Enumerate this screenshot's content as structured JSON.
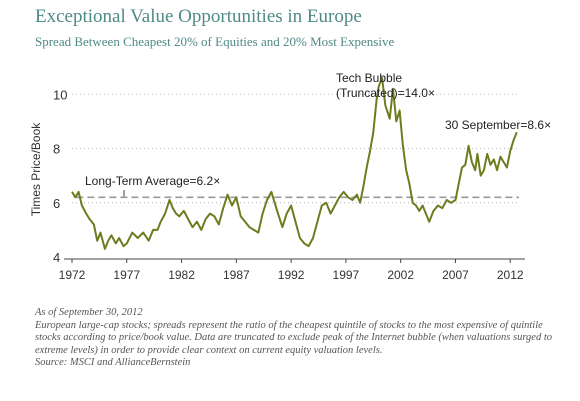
{
  "title": "Exceptional Value Opportunities in Europe",
  "subtitle": "Spread Between Cheapest 20% of Equities and 20% Most Expensive",
  "notes": [
    "As of September 30, 2012",
    "European large-cap stocks; spreads represent the ratio of the cheapest quintile of stocks to the most expensive of quintile stocks according to price/book value. Data are truncated to exclude peak of the Internet bubble (when valuations surged to extreme levels) in order to provide clear context on current equity valuation levels.",
    "Source: MSCI and AllianceBernstein"
  ],
  "chart_data": {
    "type": "line",
    "title": "Exceptional Value Opportunities in Europe",
    "subtitle": "Spread Between Cheapest 20% of Equities and 20% Most Expensive",
    "xlabel": "",
    "ylabel": "Times Price/Book",
    "xlim": [
      1972,
      2012.8
    ],
    "ylim": [
      4,
      10.6
    ],
    "x_ticks": [
      "1972",
      "1977",
      "1982",
      "1987",
      "1992",
      "1997",
      "2002",
      "2007",
      "2012"
    ],
    "y_ticks": [
      "4",
      "6",
      "8",
      "10"
    ],
    "grid": "horizontal dotted",
    "line_color": "#6b7d1e",
    "reference_line": {
      "value": 6.2,
      "label": "Long-Term Average=6.2×",
      "style": "dashed"
    },
    "annotations": [
      {
        "text_lines": [
          "Tech Bubble",
          "(Truncated)=14.0×"
        ],
        "x": 2000.3,
        "y": 14.0
      },
      {
        "text": "30 September=8.6×",
        "x": 2012.6,
        "y": 8.6
      }
    ],
    "series": [
      {
        "x": [
          1972.0,
          1972.3,
          1972.6,
          1972.9,
          1973.3,
          1973.6,
          1974.0,
          1974.3,
          1974.6,
          1975.0,
          1975.3,
          1975.6,
          1976.0,
          1976.3,
          1976.7,
          1977.0,
          1977.5,
          1978.0,
          1978.5,
          1979.0,
          1979.4,
          1979.8,
          1980.1,
          1980.5,
          1980.9,
          1981.2,
          1981.5,
          1981.8,
          1982.2,
          1982.6,
          1983.0,
          1983.4,
          1983.8,
          1984.2,
          1984.6,
          1985.0,
          1985.4,
          1985.8,
          1986.2,
          1986.6,
          1987.0,
          1987.4,
          1987.8,
          1988.2,
          1988.6,
          1989.0,
          1989.4,
          1989.8,
          1990.2,
          1990.5,
          1990.8,
          1991.2,
          1991.6,
          1992.0,
          1992.4,
          1992.8,
          1993.2,
          1993.6,
          1994.0,
          1994.4,
          1994.8,
          1995.2,
          1995.6,
          1996.0,
          1996.4,
          1996.8,
          1997.2,
          1997.6,
          1998.0,
          1998.3,
          1998.6,
          1998.9,
          1999.2,
          1999.5,
          1999.8,
          2000.0,
          2000.3,
          2000.6,
          2001.0,
          2001.3,
          2001.6,
          2001.9,
          2002.2,
          2002.5,
          2002.8,
          2003.1,
          2003.4,
          2003.7,
          2004.0,
          2004.3,
          2004.6,
          2005.0,
          2005.4,
          2005.8,
          2006.2,
          2006.6,
          2007.0,
          2007.3,
          2007.6,
          2007.9,
          2008.2,
          2008.5,
          2008.8,
          2009.0,
          2009.3,
          2009.6,
          2009.9,
          2010.2,
          2010.5,
          2010.8,
          2011.1,
          2011.4,
          2011.7,
          2012.0,
          2012.3,
          2012.6
        ],
        "values": [
          6.4,
          6.2,
          6.4,
          5.9,
          5.6,
          5.4,
          5.2,
          4.6,
          4.9,
          4.3,
          4.6,
          4.8,
          4.5,
          4.7,
          4.4,
          4.5,
          4.9,
          4.7,
          4.9,
          4.6,
          5.0,
          5.0,
          5.3,
          5.6,
          6.1,
          5.8,
          5.6,
          5.5,
          5.7,
          5.4,
          5.1,
          5.3,
          5.0,
          5.4,
          5.6,
          5.5,
          5.2,
          5.8,
          6.3,
          5.9,
          6.2,
          5.5,
          5.3,
          5.1,
          5.0,
          4.9,
          5.6,
          6.1,
          6.4,
          6.0,
          5.6,
          5.1,
          5.6,
          5.9,
          5.3,
          4.7,
          4.5,
          4.4,
          4.7,
          5.3,
          5.9,
          6.0,
          5.6,
          5.9,
          6.2,
          6.4,
          6.2,
          6.1,
          6.3,
          6.0,
          6.6,
          7.3,
          7.9,
          8.6,
          9.8,
          10.3,
          14.0,
          9.6,
          9.1,
          10.2,
          9.0,
          9.4,
          8.1,
          7.2,
          6.7,
          6.0,
          5.9,
          5.7,
          5.9,
          5.6,
          5.3,
          5.7,
          5.9,
          5.8,
          6.1,
          6.0,
          6.1,
          6.7,
          7.3,
          7.4,
          8.1,
          7.5,
          7.2,
          7.8,
          7.0,
          7.2,
          7.8,
          7.4,
          7.6,
          7.2,
          7.7,
          7.5,
          7.3,
          7.9,
          8.3,
          8.6
        ]
      }
    ]
  }
}
